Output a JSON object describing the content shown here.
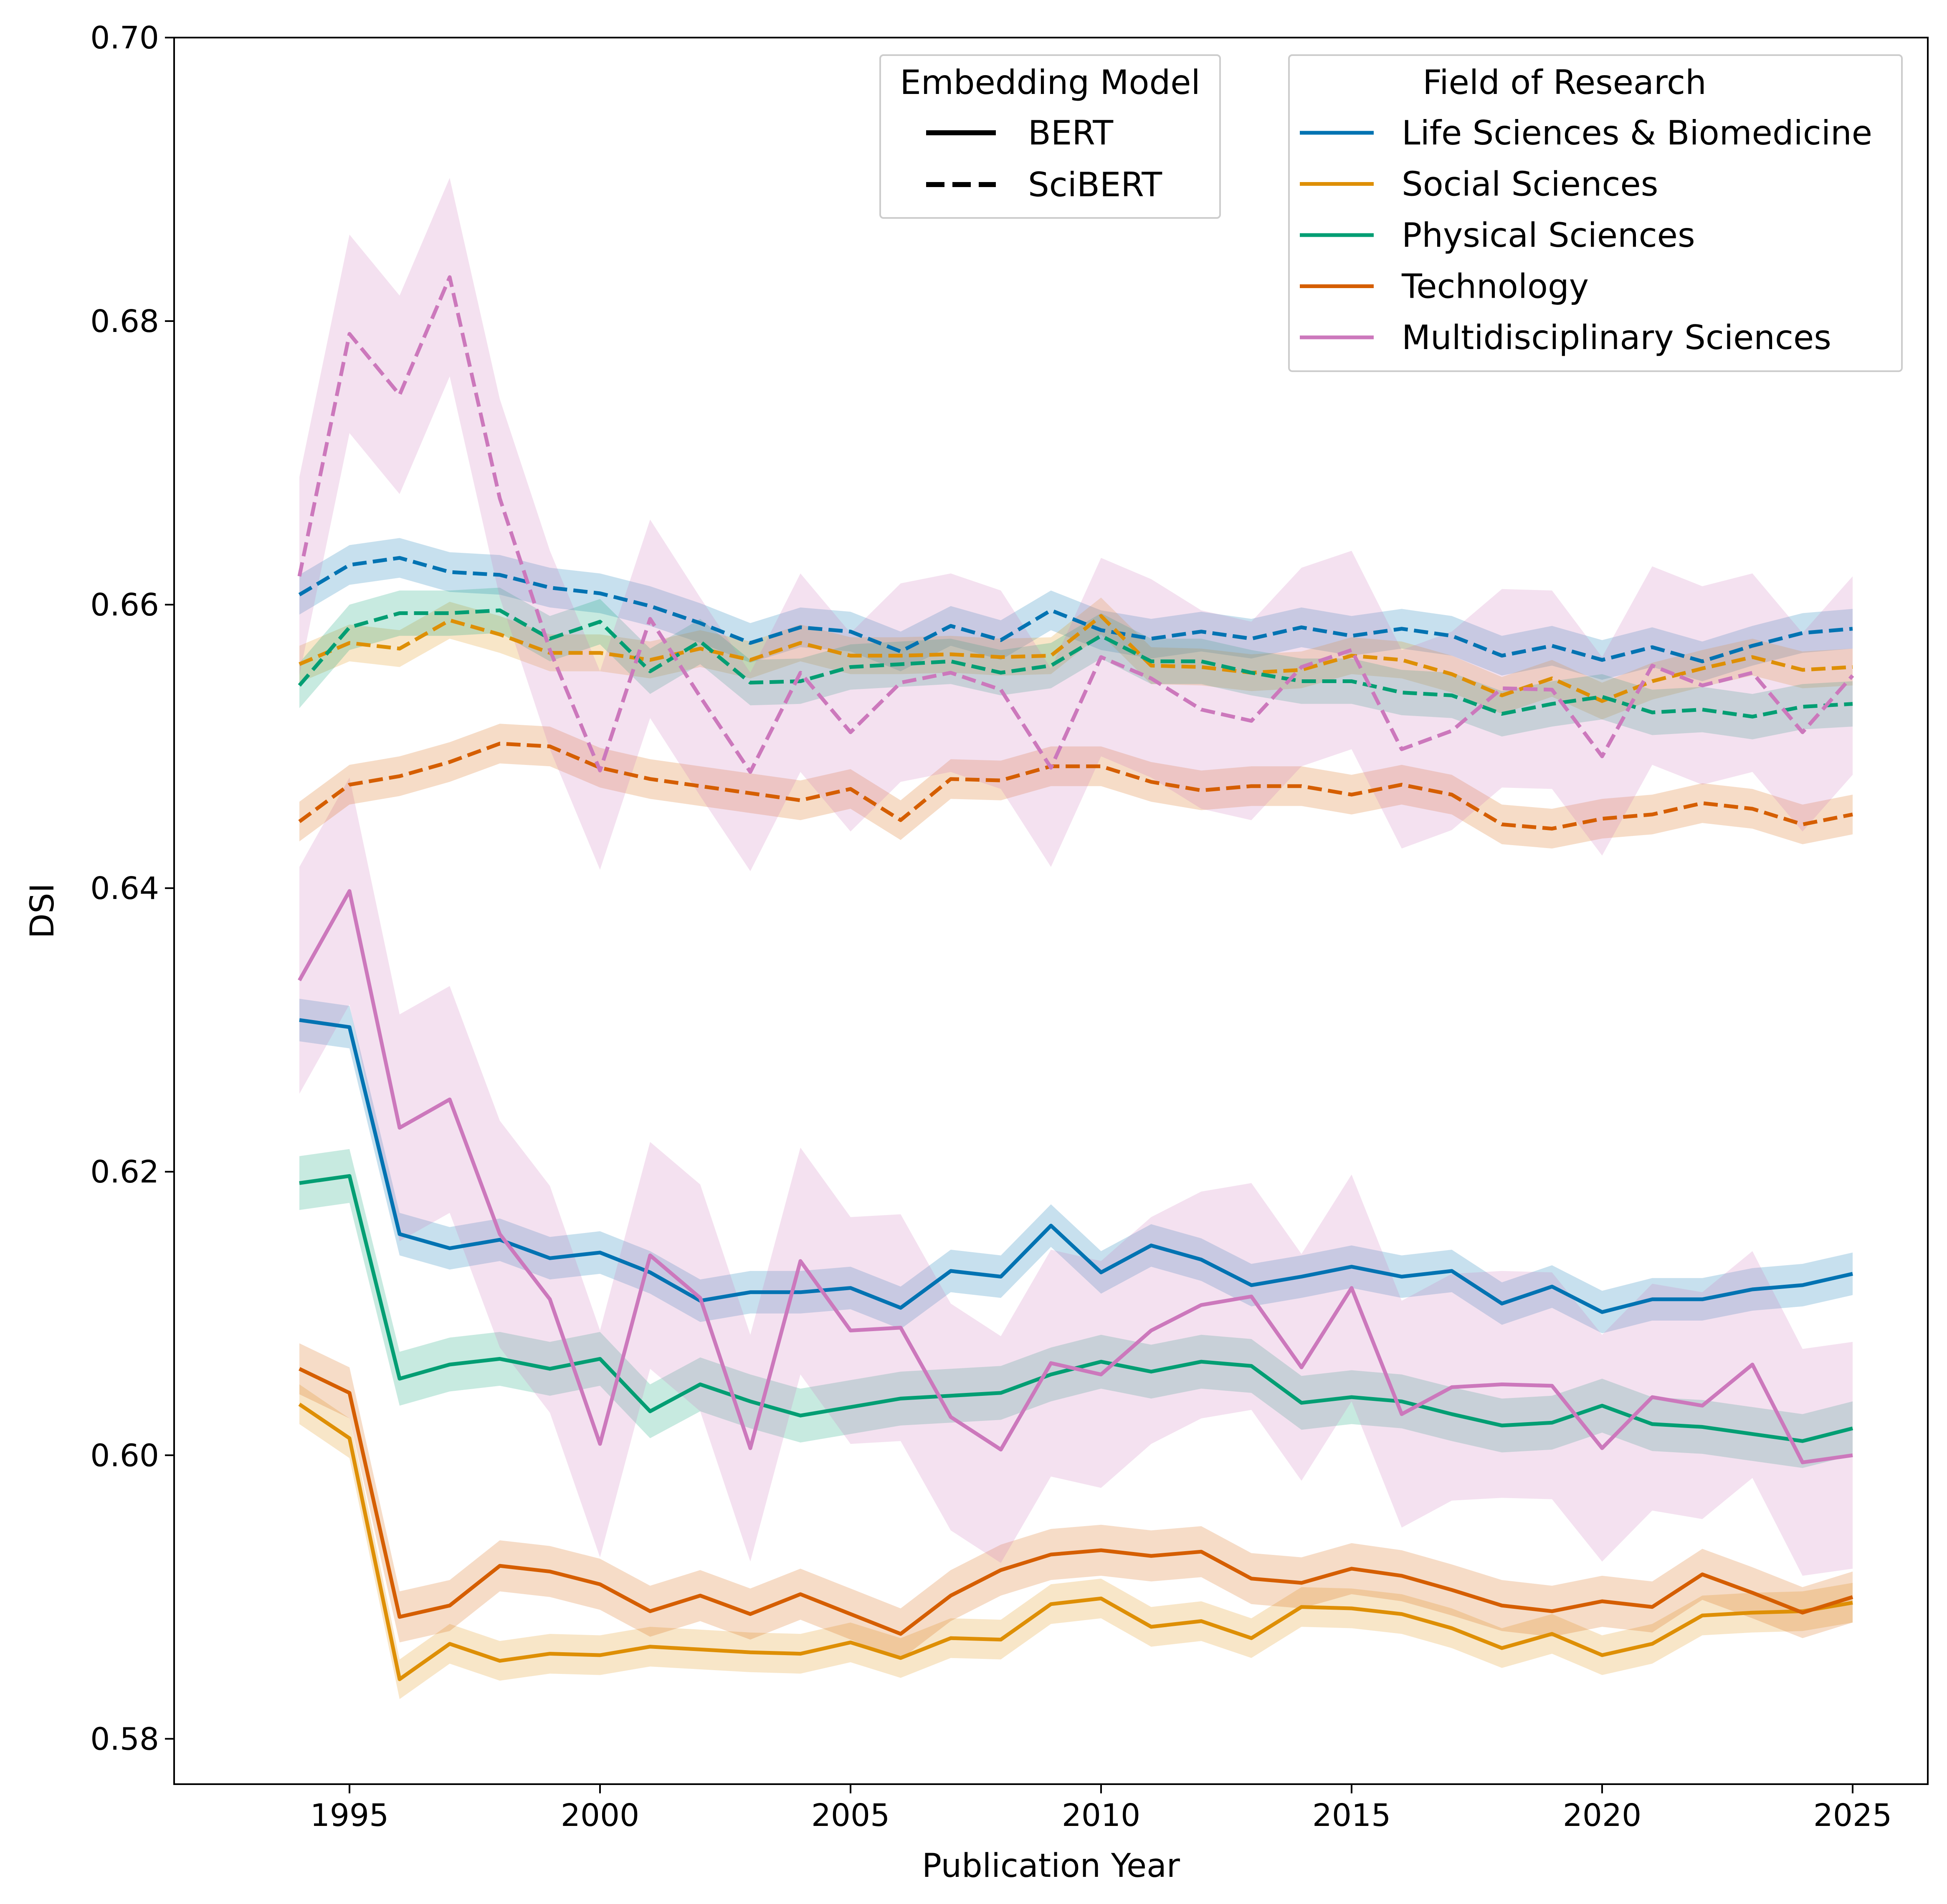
{
  "chart_data": {
    "type": "line",
    "xlabel": "Publication Year",
    "ylabel": "DSI",
    "xlim": [
      1991.5,
      2026.5
    ],
    "ylim": [
      0.5768,
      0.7
    ],
    "xticks": [
      1995,
      2000,
      2005,
      2010,
      2015,
      2020,
      2025
    ],
    "xtick_labels": [
      "1995",
      "2000",
      "2005",
      "2010",
      "2015",
      "2020",
      "2025"
    ],
    "yticks": [
      0.58,
      0.6,
      0.62,
      0.64,
      0.66,
      0.68,
      0.7
    ],
    "ytick_labels": [
      "0.58",
      "0.60",
      "0.62",
      "0.64",
      "0.66",
      "0.68",
      "0.70"
    ],
    "grid": false,
    "legend_model": {
      "title": "Embedding Model",
      "placement": "top-center",
      "entries": [
        {
          "label": "BERT",
          "style": "solid"
        },
        {
          "label": "SciBERT",
          "style": "dashed"
        }
      ]
    },
    "legend_field": {
      "title": "Field of Research",
      "placement": "top-right",
      "entries": [
        {
          "label": "Life Sciences & Biomedicine",
          "color": "#0173b2"
        },
        {
          "label": "Social Sciences",
          "color": "#de8f05"
        },
        {
          "label": "Physical Sciences",
          "color": "#029e73"
        },
        {
          "label": "Technology",
          "color": "#d55e00"
        },
        {
          "label": "Multidisciplinary Sciences",
          "color": "#cc78bc"
        }
      ]
    },
    "x": [
      1994,
      1995,
      1996,
      1997,
      1998,
      1999,
      2000,
      2001,
      2002,
      2003,
      2004,
      2005,
      2006,
      2007,
      2008,
      2009,
      2010,
      2011,
      2012,
      2013,
      2014,
      2015,
      2016,
      2017,
      2018,
      2019,
      2020,
      2021,
      2022,
      2023,
      2024,
      2025
    ],
    "series": [
      {
        "name": "Life Sciences & Biomedicine",
        "model": "BERT",
        "color": "#0173b2",
        "style": "solid",
        "ci": 0.0015,
        "values": [
          0.6307,
          0.6302,
          0.6156,
          0.6146,
          0.6152,
          0.6139,
          0.6143,
          0.6129,
          0.6109,
          0.6115,
          0.6115,
          0.6118,
          0.6104,
          0.613,
          0.6126,
          0.6162,
          0.6129,
          0.6148,
          0.6138,
          0.612,
          0.6126,
          0.6133,
          0.6126,
          0.613,
          0.6107,
          0.6119,
          0.6101,
          0.611,
          0.611,
          0.6117,
          0.612,
          0.6128
        ]
      },
      {
        "name": "Social Sciences",
        "model": "BERT",
        "color": "#de8f05",
        "style": "solid",
        "ci": 0.0014,
        "values": [
          0.6036,
          0.6012,
          0.5842,
          0.5867,
          0.5855,
          0.586,
          0.5859,
          0.5865,
          0.5863,
          0.5861,
          0.586,
          0.5868,
          0.5857,
          0.5871,
          0.587,
          0.5895,
          0.5899,
          0.5879,
          0.5883,
          0.5871,
          0.5893,
          0.5892,
          0.5888,
          0.5878,
          0.5864,
          0.5874,
          0.5859,
          0.5867,
          0.5887,
          0.5889,
          0.589,
          0.5896
        ]
      },
      {
        "name": "Physical Sciences",
        "model": "BERT",
        "color": "#029e73",
        "style": "solid",
        "ci": 0.0019,
        "values": [
          0.6192,
          0.6197,
          0.6054,
          0.6064,
          0.6068,
          0.6061,
          0.6068,
          0.6031,
          0.605,
          0.6038,
          0.6028,
          0.6034,
          0.604,
          0.6042,
          0.6044,
          0.6057,
          0.6066,
          0.6059,
          0.6066,
          0.6063,
          0.6037,
          0.6041,
          0.6038,
          0.6029,
          0.6021,
          0.6023,
          0.6035,
          0.6022,
          0.602,
          0.6015,
          0.601,
          0.6019
        ]
      },
      {
        "name": "Technology",
        "model": "BERT",
        "color": "#d55e00",
        "style": "solid",
        "ci": 0.0018,
        "values": [
          0.6061,
          0.6044,
          0.5886,
          0.5894,
          0.5922,
          0.5918,
          0.5909,
          0.589,
          0.5901,
          0.5888,
          0.5902,
          0.5888,
          0.5874,
          0.5901,
          0.5919,
          0.593,
          0.5933,
          0.5929,
          0.5932,
          0.5913,
          0.591,
          0.592,
          0.5915,
          0.5905,
          0.5894,
          0.589,
          0.5897,
          0.5893,
          0.5916,
          0.5903,
          0.5889,
          0.59
        ]
      },
      {
        "name": "Multidisciplinary Sciences",
        "model": "BERT",
        "color": "#cc78bc",
        "style": "solid",
        "ci": 0.008,
        "values": [
          0.6335,
          0.6398,
          0.6231,
          0.6251,
          0.6156,
          0.611,
          0.6008,
          0.6141,
          0.6111,
          0.6005,
          0.6137,
          0.6088,
          0.609,
          0.6027,
          0.6004,
          0.6065,
          0.6057,
          0.6088,
          0.6106,
          0.6112,
          0.6062,
          0.6118,
          0.6029,
          0.6048,
          0.605,
          0.6049,
          0.6005,
          0.6041,
          0.6035,
          0.6064,
          0.5995,
          0.6
        ]
      },
      {
        "name": "Life Sciences & Biomedicine",
        "model": "SciBERT",
        "color": "#0173b2",
        "style": "dashed",
        "ci": 0.0014,
        "values": [
          0.6607,
          0.6628,
          0.6633,
          0.6623,
          0.6621,
          0.6612,
          0.6608,
          0.6599,
          0.6587,
          0.6573,
          0.6584,
          0.6581,
          0.6567,
          0.6585,
          0.6575,
          0.6596,
          0.6582,
          0.6576,
          0.6581,
          0.6576,
          0.6584,
          0.6578,
          0.6583,
          0.6578,
          0.6564,
          0.6571,
          0.6561,
          0.657,
          0.656,
          0.6571,
          0.658,
          0.6583
        ]
      },
      {
        "name": "Social Sciences",
        "model": "SciBERT",
        "color": "#de8f05",
        "style": "dashed",
        "ci": 0.0013,
        "values": [
          0.6558,
          0.6573,
          0.6569,
          0.6589,
          0.6579,
          0.6566,
          0.6566,
          0.6561,
          0.6569,
          0.6561,
          0.6573,
          0.6564,
          0.6564,
          0.6565,
          0.6563,
          0.6564,
          0.6592,
          0.6557,
          0.6556,
          0.6552,
          0.6554,
          0.6564,
          0.6561,
          0.6551,
          0.6536,
          0.6548,
          0.6532,
          0.6546,
          0.6555,
          0.6563,
          0.6554,
          0.6556
        ]
      },
      {
        "name": "Physical Sciences",
        "model": "SciBERT",
        "color": "#029e73",
        "style": "dashed",
        "ci": 0.0016,
        "values": [
          0.6543,
          0.6584,
          0.6594,
          0.6594,
          0.6596,
          0.6576,
          0.6588,
          0.6553,
          0.6574,
          0.6545,
          0.6546,
          0.6556,
          0.6558,
          0.656,
          0.6552,
          0.6557,
          0.6578,
          0.656,
          0.656,
          0.6552,
          0.6546,
          0.6546,
          0.6538,
          0.6536,
          0.6523,
          0.653,
          0.6535,
          0.6524,
          0.6526,
          0.6521,
          0.6528,
          0.653
        ]
      },
      {
        "name": "Technology",
        "model": "SciBERT",
        "color": "#d55e00",
        "style": "dashed",
        "ci": 0.0014,
        "values": [
          0.6447,
          0.6473,
          0.6479,
          0.6489,
          0.6502,
          0.65,
          0.6485,
          0.6477,
          0.6472,
          0.6467,
          0.6462,
          0.647,
          0.6448,
          0.6477,
          0.6476,
          0.6486,
          0.6486,
          0.6475,
          0.6469,
          0.6472,
          0.6472,
          0.6466,
          0.6473,
          0.6466,
          0.6445,
          0.6442,
          0.6449,
          0.6452,
          0.646,
          0.6456,
          0.6445,
          0.6452
        ]
      },
      {
        "name": "Multidisciplinary Sciences",
        "model": "SciBERT",
        "color": "#cc78bc",
        "style": "dashed",
        "ci": 0.007,
        "values": [
          0.662,
          0.6791,
          0.6748,
          0.6831,
          0.6675,
          0.6568,
          0.6483,
          0.659,
          0.6535,
          0.6482,
          0.6552,
          0.651,
          0.6545,
          0.6552,
          0.654,
          0.6485,
          0.6563,
          0.6548,
          0.6526,
          0.6518,
          0.6556,
          0.6568,
          0.6498,
          0.6511,
          0.6541,
          0.654,
          0.6493,
          0.6557,
          0.6543,
          0.6552,
          0.651,
          0.655
        ]
      }
    ]
  }
}
